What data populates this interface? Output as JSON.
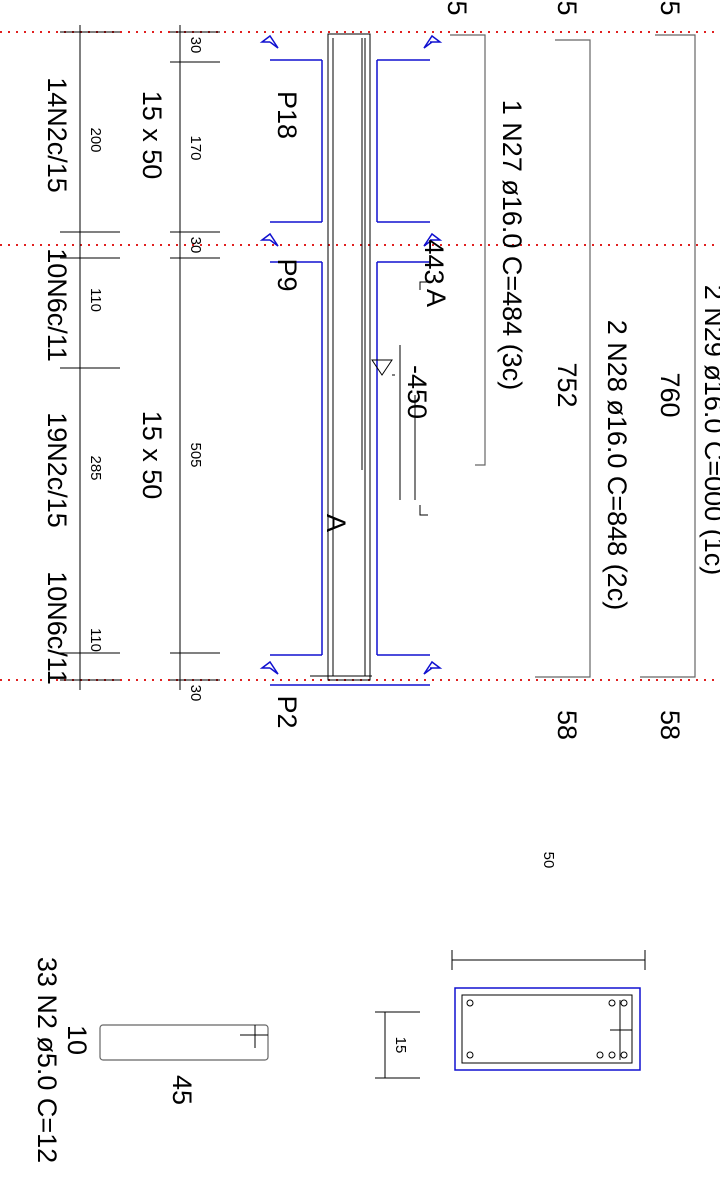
{
  "edge_marks": [
    "5",
    "5",
    "5"
  ],
  "stirrups": [
    "14N2c/15",
    "10N6c/11",
    "19N2c/15",
    "10N6c/11"
  ],
  "stirrup_spans": [
    "200",
    "110",
    "285",
    "110"
  ],
  "sections": [
    "15 x 50",
    "15 x 50"
  ],
  "spans": [
    "170",
    "505"
  ],
  "supports_widths": [
    "30",
    "30",
    "30"
  ],
  "supports": [
    "P18",
    "P9",
    "P2"
  ],
  "bars": [
    {
      "label": "1 N27 ø16.0 C=484  (3c)",
      "length": "443"
    },
    {
      "label": "2 N28 ø16.0 C=848  (2c)",
      "length": "752",
      "hook": "58"
    },
    {
      "label": "2 N29 ø16.0 C=000  (1c)",
      "length": "760",
      "hook": "58"
    }
  ],
  "section_marks": [
    "A",
    "A"
  ],
  "level": "-450",
  "cross_section": {
    "width": "50",
    "height": "15"
  },
  "stirrup_detail": {
    "label": "33 N2 ø5.0 C=12",
    "height": "10",
    "width": "45"
  }
}
